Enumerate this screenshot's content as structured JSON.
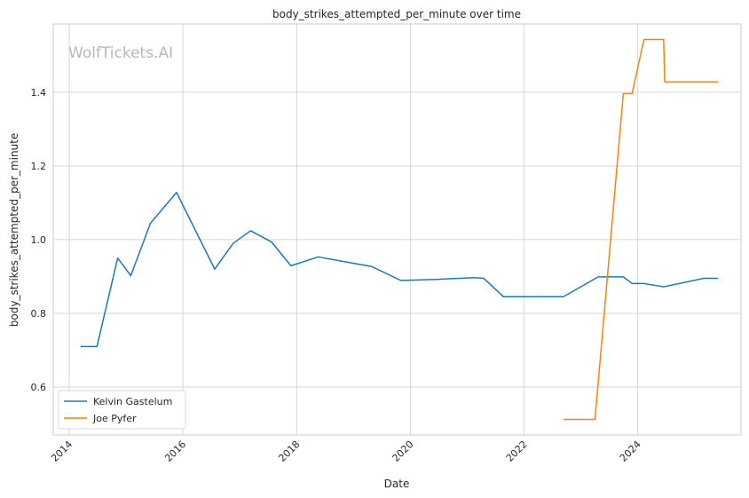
{
  "chart_data": {
    "type": "line",
    "title": "body_strikes_attempted_per_minute over time",
    "xlabel": "Date",
    "ylabel": "body_strikes_attempted_per_minute",
    "watermark": "WolfTickets.AI",
    "x_ticks": [
      "2014",
      "2016",
      "2018",
      "2020",
      "2022",
      "2024"
    ],
    "y_ticks": [
      "0.6",
      "0.8",
      "1.0",
      "1.2",
      "1.4"
    ],
    "xlim": [
      "2013-09-20",
      "2025-10-25"
    ],
    "ylim": [
      0.47,
      1.585
    ],
    "grid": true,
    "legend_position": "lower-left",
    "series": [
      {
        "name": "Kelvin Gastelum",
        "color": "#1f77b4",
        "points": [
          [
            "2014-03-15",
            0.71
          ],
          [
            "2014-06-28",
            0.71
          ],
          [
            "2014-11-08",
            0.95
          ],
          [
            "2015-01-31",
            0.902
          ],
          [
            "2015-06-06",
            1.044
          ],
          [
            "2015-11-21",
            1.128
          ],
          [
            "2016-07-23",
            0.92
          ],
          [
            "2016-11-19",
            0.99
          ],
          [
            "2017-03-11",
            1.024
          ],
          [
            "2017-07-22",
            0.994
          ],
          [
            "2017-11-25",
            0.929
          ],
          [
            "2018-05-19",
            0.953
          ],
          [
            "2019-04-27",
            0.927
          ],
          [
            "2019-11-02",
            0.889
          ],
          [
            "2020-06-15",
            0.892
          ],
          [
            "2021-02-13",
            0.897
          ],
          [
            "2021-04-17",
            0.895
          ],
          [
            "2021-08-21",
            0.845
          ],
          [
            "2022-09-10",
            0.845
          ],
          [
            "2023-04-22",
            0.899
          ],
          [
            "2023-09-30",
            0.899
          ],
          [
            "2023-11-25",
            0.881
          ],
          [
            "2024-02-10",
            0.881
          ],
          [
            "2024-06-15",
            0.872
          ],
          [
            "2025-03-01",
            0.895
          ],
          [
            "2025-05-31",
            0.895
          ]
        ]
      },
      {
        "name": "Joe Pyfer",
        "color": "#ff7f0e",
        "points": [
          [
            "2022-09-10",
            0.512
          ],
          [
            "2023-04-01",
            0.512
          ],
          [
            "2023-09-30",
            1.396
          ],
          [
            "2023-11-25",
            1.396
          ],
          [
            "2024-02-10",
            1.543
          ],
          [
            "2024-06-15",
            1.543
          ],
          [
            "2024-06-22",
            1.428
          ],
          [
            "2025-05-31",
            1.428
          ]
        ]
      }
    ]
  }
}
